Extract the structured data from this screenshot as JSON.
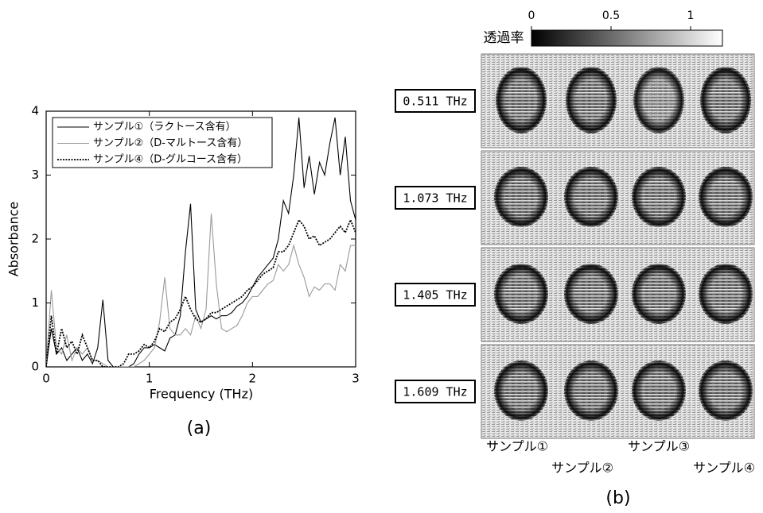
{
  "chart_data": {
    "type": "line",
    "panel_label": "(a)",
    "x_label": "Frequency (THz)",
    "y_label": "Absorbance",
    "x": [
      0,
      0.05,
      0.1,
      0.15,
      0.2,
      0.25,
      0.3,
      0.35,
      0.4,
      0.45,
      0.5,
      0.55,
      0.6,
      0.65,
      0.7,
      0.75,
      0.8,
      0.85,
      0.9,
      0.95,
      1.0,
      1.05,
      1.1,
      1.15,
      1.2,
      1.25,
      1.3,
      1.35,
      1.4,
      1.45,
      1.5,
      1.55,
      1.6,
      1.65,
      1.7,
      1.75,
      1.8,
      1.85,
      1.9,
      1.95,
      2.0,
      2.05,
      2.1,
      2.15,
      2.2,
      2.25,
      2.3,
      2.35,
      2.4,
      2.45,
      2.5,
      2.55,
      2.6,
      2.65,
      2.7,
      2.75,
      2.8,
      2.85,
      2.9,
      2.95,
      3.0
    ],
    "series": [
      {
        "name": "サンプル①（ラクトース含有）",
        "color": "#000000",
        "dash": "solid",
        "values": [
          0,
          0.6,
          0.2,
          0.3,
          0.1,
          0.2,
          0.3,
          0.1,
          0.2,
          0.05,
          0.3,
          1.05,
          0.1,
          0,
          0,
          0,
          0,
          0.05,
          0.2,
          0.3,
          0.3,
          0.35,
          0.3,
          0.25,
          0.45,
          0.5,
          0.8,
          1.8,
          2.55,
          0.9,
          0.7,
          0.75,
          0.8,
          0.75,
          0.8,
          0.8,
          0.85,
          0.95,
          1.0,
          1.1,
          1.25,
          1.4,
          1.5,
          1.6,
          1.7,
          2.0,
          2.6,
          2.4,
          3.0,
          3.9,
          2.8,
          3.3,
          2.7,
          3.2,
          3.0,
          3.5,
          3.9,
          3.0,
          3.6,
          2.6,
          2.3
        ]
      },
      {
        "name": "サンプル②（D-マルトース含有）",
        "color": "#9a9a9a",
        "dash": "solid",
        "values": [
          0,
          1.2,
          0.3,
          0.2,
          0.5,
          0.1,
          0.3,
          0.2,
          0.3,
          0.1,
          0.1,
          0.05,
          0,
          0,
          0,
          0,
          0,
          0,
          0.05,
          0.1,
          0.2,
          0.3,
          0.7,
          1.4,
          0.6,
          0.5,
          0.5,
          0.6,
          0.5,
          0.8,
          0.6,
          0.9,
          2.4,
          1.3,
          0.6,
          0.55,
          0.6,
          0.65,
          0.8,
          1.0,
          1.1,
          1.1,
          1.2,
          1.3,
          1.35,
          1.6,
          1.5,
          1.6,
          1.9,
          1.6,
          1.4,
          1.1,
          1.25,
          1.2,
          1.3,
          1.3,
          1.2,
          1.6,
          1.5,
          1.9,
          1.9
        ]
      },
      {
        "name": "サンプル④（D-グルコース含有）",
        "color": "#000000",
        "dash": "dotted",
        "values": [
          0,
          0.8,
          0.2,
          0.6,
          0.3,
          0.4,
          0.2,
          0.5,
          0.3,
          0.1,
          0.1,
          0,
          0,
          0,
          0,
          0.05,
          0.2,
          0.2,
          0.25,
          0.35,
          0.3,
          0.4,
          0.6,
          0.55,
          0.7,
          0.75,
          0.9,
          1.1,
          0.9,
          0.75,
          0.7,
          0.75,
          0.85,
          0.85,
          0.9,
          0.95,
          1.0,
          1.05,
          1.1,
          1.2,
          1.25,
          1.35,
          1.45,
          1.5,
          1.55,
          1.8,
          1.8,
          1.9,
          2.1,
          2.3,
          2.2,
          2.0,
          2.05,
          1.9,
          1.95,
          2.0,
          2.1,
          2.2,
          2.1,
          2.3,
          2.1
        ]
      }
    ],
    "xlim": [
      0,
      3
    ],
    "xticks": [
      0,
      1,
      2,
      3
    ],
    "ylim": [
      0,
      4
    ],
    "yticks": [
      0,
      1,
      2,
      3,
      4
    ],
    "legend": "upper left"
  },
  "panel_b": {
    "panel_label": "(b)",
    "colorbar": {
      "label": "透過率",
      "lim": [
        0,
        1.2
      ],
      "ticks": [
        0,
        0.5,
        1
      ]
    },
    "frequencies": [
      "0.511 THz",
      "1.073 THz",
      "1.405 THz",
      "1.609 THz"
    ],
    "samples": [
      "サンプル①",
      "サンプル②",
      "サンプル③",
      "サンプル④"
    ]
  }
}
